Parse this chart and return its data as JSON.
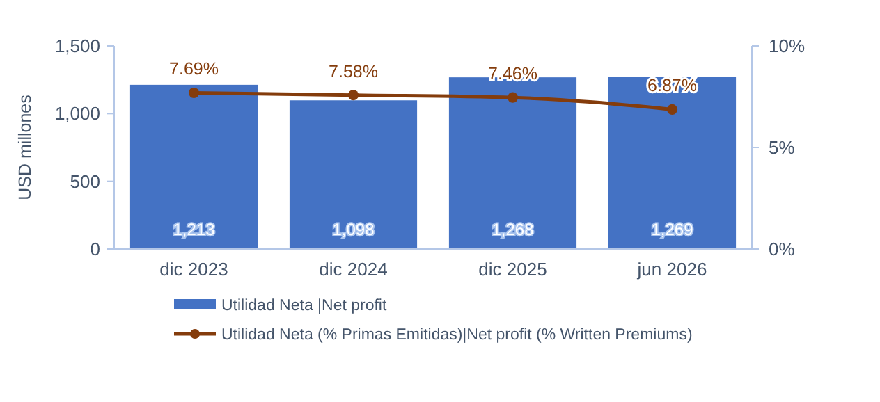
{
  "chart_data": {
    "type": "bar",
    "ylabel": "USD millones",
    "categories": [
      "dic 2023",
      "dic 2024",
      "dic 2025",
      "jun 2026"
    ],
    "series": [
      {
        "name": "Utilidad Neta |Net profit",
        "color": "#4472c4",
        "values": [
          1213,
          1098,
          1268,
          1269
        ],
        "value_labels": [
          "1,213",
          "1,098",
          "1,268",
          "1,269"
        ]
      },
      {
        "name": "Utilidad Neta (% Primas Emitidas)|Net profit (% Written Premiums)",
        "type": "line",
        "axis": "y2",
        "color": "#843c0c",
        "values": [
          7.69,
          7.58,
          7.46,
          6.87
        ],
        "value_labels": [
          "7.69%",
          "7.58%",
          "7.46%",
          "6.87%"
        ]
      }
    ],
    "ylim": [
      0,
      1500
    ],
    "yticks": [
      {
        "value": 0,
        "label": "0"
      },
      {
        "value": 500,
        "label": "500"
      },
      {
        "value": 1000,
        "label": "1,000"
      },
      {
        "value": 1500,
        "label": "1,500"
      }
    ],
    "y2lim": [
      0,
      10
    ],
    "y2ticks": [
      {
        "value": 0,
        "label": "0%"
      },
      {
        "value": 5,
        "label": "5%"
      },
      {
        "value": 10,
        "label": "10%"
      }
    ],
    "grid": false,
    "legend": "bottom",
    "marker": "circle",
    "line_style": "solid"
  }
}
